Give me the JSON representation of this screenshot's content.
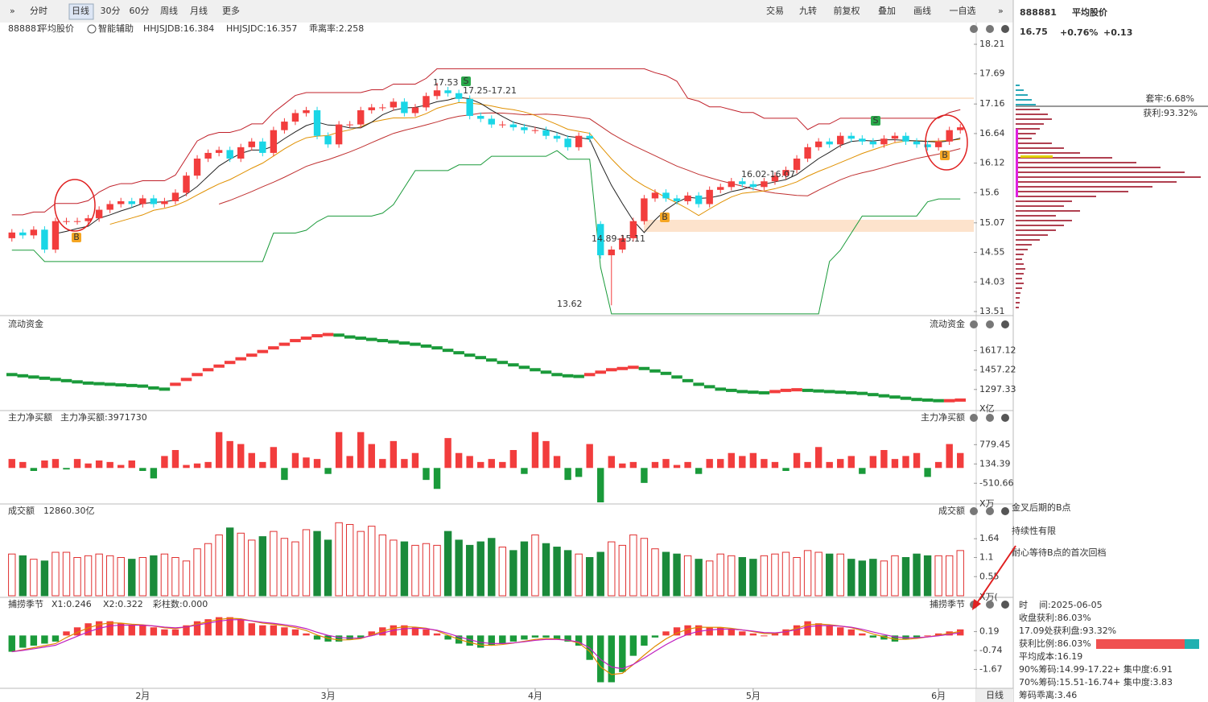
{
  "toolbar": {
    "left": [
      "分时",
      "日线",
      "30分",
      "60分",
      "周线",
      "月线",
      "更多"
    ],
    "right": [
      "交易",
      "九转",
      "前复权",
      "叠加",
      "画线",
      "一自选"
    ]
  },
  "info": {
    "code": "888881",
    "name": "平均股价",
    "price": "16.75",
    "change_pct": "+0.76%",
    "change": "+0.13",
    "trapped": "套牢:6.68%",
    "profit": "获利:93.32%",
    "details": [
      "时    间:2025-06-05",
      "收盘获利:86.03%",
      "17.09处获利盘:93.32%",
      "获利比例:86.03%",
      "平均成本:16.19",
      "90%筹码:14.99-17.22+ 集中度:6.91",
      "70%筹码:15.51-16.74+ 集中度:3.83",
      "筹码乖离:3.46"
    ],
    "chips": [
      0,
      5,
      10,
      15,
      20,
      25,
      30,
      40,
      45,
      35,
      30,
      25,
      20,
      45,
      60,
      80,
      120,
      150,
      180,
      210,
      230,
      200,
      170,
      140,
      100,
      70,
      60,
      80,
      50,
      70,
      60,
      50,
      40,
      30,
      20,
      15,
      10,
      8,
      10,
      12,
      10,
      8,
      10,
      8,
      6,
      5,
      5,
      4
    ]
  },
  "note": [
    "金叉后期的B点",
    "持续性有限",
    "耐心等待B点的首次回档"
  ],
  "period": "日线",
  "chart_data": [
    {
      "type": "candlestick",
      "title": "888881",
      "subtitle": "平均股价",
      "legend": [
        "智能辅助",
        "HHJSJDB:16.384",
        "HHJSJDC:16.357",
        "乖离率:2.258"
      ],
      "categories": [
        null,
        null,
        null,
        null,
        null,
        null,
        null,
        null,
        null,
        null,
        null,
        null,
        "2月",
        null,
        null,
        null,
        null,
        null,
        null,
        null,
        null,
        null,
        null,
        null,
        null,
        null,
        null,
        null,
        null,
        "3月",
        null,
        null,
        null,
        null,
        null,
        null,
        null,
        null,
        null,
        null,
        null,
        null,
        null,
        null,
        null,
        null,
        null,
        null,
        "4月",
        null,
        null,
        null,
        null,
        null,
        null,
        null,
        null,
        null,
        null,
        null,
        null,
        null,
        null,
        null,
        null,
        null,
        null,
        null,
        "5月",
        null,
        null,
        null,
        null,
        null,
        null,
        null,
        null,
        null,
        null,
        null,
        null,
        null,
        null,
        null,
        null,
        "6月",
        null,
        null
      ],
      "open": [
        14.8,
        14.9,
        14.85,
        14.95,
        14.6,
        15.1,
        15.1,
        15.1,
        15.15,
        15.3,
        15.4,
        15.45,
        15.4,
        15.5,
        15.4,
        15.45,
        15.6,
        15.9,
        16.2,
        16.3,
        16.35,
        16.2,
        16.4,
        16.5,
        16.3,
        16.7,
        16.85,
        17.0,
        17.05,
        16.6,
        16.45,
        16.8,
        16.8,
        17.05,
        17.1,
        17.1,
        17.2,
        17.0,
        17.1,
        17.3,
        17.4,
        17.35,
        17.25,
        16.95,
        16.9,
        16.8,
        16.8,
        16.75,
        16.7,
        16.7,
        16.6,
        16.55,
        16.4,
        16.6,
        15.05,
        14.5,
        14.6,
        14.8,
        15.1,
        15.5,
        15.6,
        15.5,
        15.45,
        15.55,
        15.4,
        15.65,
        15.7,
        15.8,
        15.75,
        15.7,
        15.8,
        15.9,
        16.0,
        16.2,
        16.4,
        16.5,
        16.45,
        16.6,
        16.55,
        16.5,
        16.45,
        16.55,
        16.6,
        16.5,
        16.45,
        16.4,
        16.5,
        16.7
      ],
      "high": [
        14.96,
        14.96,
        15.01,
        15.01,
        15.16,
        15.16,
        15.16,
        15.21,
        15.36,
        15.46,
        15.51,
        15.51,
        15.56,
        15.56,
        15.51,
        15.66,
        15.96,
        16.26,
        16.36,
        16.41,
        16.41,
        16.46,
        16.56,
        16.56,
        16.76,
        16.91,
        17.06,
        17.11,
        17.11,
        16.66,
        16.86,
        16.86,
        17.11,
        17.16,
        17.16,
        17.26,
        17.26,
        17.16,
        17.36,
        17.53,
        17.46,
        17.41,
        17.31,
        17.01,
        16.96,
        16.86,
        16.86,
        16.81,
        16.76,
        16.76,
        16.66,
        16.61,
        16.66,
        16.66,
        15.1,
        14.66,
        14.86,
        15.16,
        15.56,
        15.66,
        15.66,
        15.56,
        15.61,
        15.61,
        15.71,
        15.76,
        15.86,
        15.86,
        15.81,
        15.86,
        15.96,
        16.06,
        16.26,
        16.46,
        16.56,
        16.56,
        16.66,
        16.66,
        16.61,
        16.56,
        16.61,
        16.66,
        16.66,
        16.56,
        16.51,
        16.56,
        16.76,
        16.81
      ],
      "low": [
        14.74,
        14.79,
        14.79,
        14.54,
        14.54,
        15.04,
        15.04,
        15.04,
        15.09,
        15.24,
        15.34,
        15.34,
        15.34,
        15.34,
        15.34,
        15.39,
        15.54,
        15.84,
        16.14,
        16.24,
        16.14,
        16.14,
        16.34,
        16.24,
        16.24,
        16.64,
        16.79,
        16.94,
        16.54,
        16.39,
        16.39,
        16.74,
        16.74,
        16.99,
        17.04,
        17.04,
        16.94,
        16.94,
        17.04,
        17.24,
        17.29,
        17.19,
        16.89,
        16.84,
        16.74,
        16.74,
        16.69,
        16.64,
        16.64,
        16.54,
        16.49,
        16.34,
        16.34,
        16.49,
        14.44,
        13.62,
        14.54,
        14.74,
        15.04,
        15.44,
        15.44,
        15.39,
        15.39,
        15.34,
        15.34,
        15.59,
        15.64,
        15.69,
        15.64,
        15.64,
        15.74,
        15.84,
        15.94,
        16.14,
        16.34,
        16.39,
        16.39,
        16.49,
        16.44,
        16.39,
        16.39,
        16.49,
        16.44,
        16.39,
        16.34,
        16.34,
        16.44,
        16.64
      ],
      "close": [
        14.9,
        14.85,
        14.95,
        14.6,
        15.1,
        15.1,
        15.1,
        15.15,
        15.3,
        15.4,
        15.45,
        15.4,
        15.5,
        15.4,
        15.45,
        15.6,
        15.9,
        16.2,
        16.3,
        16.35,
        16.2,
        16.4,
        16.5,
        16.3,
        16.7,
        16.85,
        17.0,
        17.05,
        16.6,
        16.45,
        16.8,
        16.8,
        17.05,
        17.1,
        17.1,
        17.2,
        17.0,
        17.1,
        17.3,
        17.4,
        17.35,
        17.25,
        16.95,
        16.9,
        16.8,
        16.8,
        16.75,
        16.7,
        16.7,
        16.6,
        16.55,
        16.4,
        16.6,
        16.55,
        14.5,
        14.6,
        14.8,
        15.1,
        15.5,
        15.6,
        15.5,
        15.45,
        15.55,
        15.4,
        15.65,
        15.7,
        15.8,
        15.75,
        15.7,
        15.8,
        15.9,
        16.0,
        16.2,
        16.4,
        16.5,
        16.45,
        16.6,
        16.55,
        16.5,
        16.45,
        16.55,
        16.6,
        16.5,
        16.45,
        16.4,
        16.5,
        16.7,
        16.75
      ],
      "up_color": "#f23d3d",
      "down_color": "#1ad6e6",
      "ylim": [
        13.51,
        18.21
      ],
      "yticks": [
        18.21,
        17.69,
        17.16,
        16.64,
        16.12,
        15.6,
        15.07,
        14.55,
        14.03,
        13.51
      ],
      "signals": [
        "B",
        "S",
        "B",
        "S",
        "B"
      ],
      "annotations": [
        "17.53",
        "17.25-17.21",
        "16.02-16.07",
        "14.89-15.11",
        "13.62"
      ]
    },
    {
      "type": "dots",
      "title": "流动资金",
      "unit": "X亿",
      "values": [
        1420,
        1410,
        1400,
        1390,
        1380,
        1370,
        1360,
        1350,
        1345,
        1340,
        1335,
        1330,
        1325,
        1310,
        1300,
        1340,
        1380,
        1420,
        1460,
        1490,
        1520,
        1550,
        1580,
        1610,
        1640,
        1670,
        1700,
        1720,
        1740,
        1750,
        1745,
        1730,
        1720,
        1710,
        1700,
        1690,
        1680,
        1670,
        1655,
        1640,
        1620,
        1600,
        1580,
        1560,
        1540,
        1520,
        1500,
        1480,
        1460,
        1440,
        1420,
        1410,
        1405,
        1420,
        1440,
        1460,
        1470,
        1480,
        1470,
        1450,
        1430,
        1400,
        1370,
        1340,
        1320,
        1300,
        1290,
        1280,
        1275,
        1270,
        1280,
        1290,
        1295,
        1290,
        1285,
        1280,
        1275,
        1270,
        1265,
        1255,
        1245,
        1235,
        1225,
        1215,
        1210,
        1205,
        1205,
        1210
      ],
      "up_color": "#f23d3d",
      "down_color": "#1a9a3a",
      "ylim": [
        1150,
        1820
      ],
      "yticks": [
        1617.12,
        1457.22,
        1297.33
      ]
    },
    {
      "type": "bar",
      "title": "主力净买额",
      "label": "主力净买额:3971730",
      "unit": "X万",
      "values": [
        300,
        200,
        -100,
        250,
        300,
        -50,
        300,
        150,
        250,
        200,
        100,
        250,
        -100,
        -350,
        400,
        600,
        100,
        150,
        200,
        1200,
        900,
        800,
        500,
        200,
        700,
        -400,
        500,
        350,
        300,
        -200,
        1200,
        400,
        1200,
        800,
        300,
        900,
        300,
        500,
        -400,
        -700,
        1000,
        500,
        400,
        200,
        300,
        200,
        600,
        -200,
        1200,
        900,
        400,
        -400,
        -300,
        800,
        -1150,
        400,
        150,
        200,
        -500,
        200,
        300,
        100,
        200,
        -200,
        300,
        300,
        500,
        400,
        500,
        300,
        200,
        -100,
        500,
        200,
        700,
        200,
        300,
        400,
        -200,
        400,
        600,
        300,
        400,
        500,
        -300,
        200,
        800,
        500
      ],
      "up_color": "#f23d3d",
      "down_color": "#1a9a3a",
      "ylim": [
        -1150,
        1300
      ],
      "yticks": [
        779.45,
        134.39,
        -510.66
      ]
    },
    {
      "type": "volume",
      "title": "成交额",
      "label": "12860.30亿",
      "unit": "X万(",
      "values": [
        1.2,
        1.15,
        1.05,
        1.0,
        1.25,
        1.25,
        1.1,
        1.15,
        1.2,
        1.15,
        1.1,
        1.05,
        1.1,
        1.15,
        1.2,
        1.1,
        1.0,
        1.35,
        1.5,
        1.75,
        1.95,
        1.8,
        1.6,
        1.7,
        1.85,
        1.65,
        1.55,
        1.9,
        1.85,
        1.6,
        2.1,
        2.05,
        1.85,
        2.0,
        1.75,
        1.6,
        1.55,
        1.45,
        1.5,
        1.45,
        1.85,
        1.6,
        1.45,
        1.55,
        1.65,
        1.4,
        1.3,
        1.55,
        1.75,
        1.5,
        1.4,
        1.3,
        1.2,
        1.1,
        1.25,
        1.55,
        1.45,
        1.75,
        1.65,
        1.35,
        1.25,
        1.2,
        1.15,
        1.05,
        1.0,
        1.2,
        1.15,
        1.1,
        1.05,
        1.15,
        1.2,
        1.25,
        1.1,
        1.3,
        1.25,
        1.2,
        1.2,
        1.05,
        1.0,
        1.05,
        1.0,
        1.15,
        1.1,
        1.2,
        1.15,
        1.15,
        1.15,
        1.3
      ],
      "up_color": "#e03030",
      "down_color": "#1a8a3a",
      "ylim": [
        0,
        2.2
      ],
      "yticks": [
        1.64,
        1.1,
        0.55
      ]
    },
    {
      "type": "bar",
      "title": "捕捞季节",
      "legend": [
        "X1:0.246",
        "X2:0.322",
        "彩柱数:0.000"
      ],
      "values": [
        -0.8,
        -0.6,
        -0.5,
        -0.4,
        -0.3,
        0.2,
        0.4,
        0.6,
        0.7,
        0.7,
        0.6,
        0.5,
        0.5,
        0.4,
        0.3,
        0.3,
        0.5,
        0.7,
        0.8,
        0.9,
        0.9,
        0.8,
        0.6,
        0.5,
        0.5,
        0.4,
        0.3,
        0.1,
        -0.2,
        -0.3,
        -0.3,
        -0.2,
        -0.1,
        0.2,
        0.4,
        0.5,
        0.5,
        0.4,
        0.3,
        0.1,
        -0.2,
        -0.4,
        -0.5,
        -0.6,
        -0.5,
        -0.4,
        -0.3,
        -0.2,
        -0.1,
        -0.1,
        -0.2,
        -0.3,
        -0.5,
        -1.2,
        -2.3,
        -2.3,
        -1.8,
        -1.0,
        -0.5,
        -0.1,
        0.2,
        0.4,
        0.5,
        0.5,
        0.4,
        0.4,
        0.3,
        0.2,
        0.1,
        0.0,
        0.1,
        0.3,
        0.5,
        0.7,
        0.6,
        0.5,
        0.4,
        0.3,
        0.1,
        -0.1,
        -0.2,
        -0.3,
        -0.2,
        -0.1,
        0.0,
        0.1,
        0.2,
        0.3
      ],
      "up_color": "#f23d3d",
      "down_color": "#1a9a3a",
      "ylim": [
        -2.4,
        1.4
      ],
      "yticks": [
        0.19,
        -0.74,
        -1.67
      ]
    }
  ]
}
